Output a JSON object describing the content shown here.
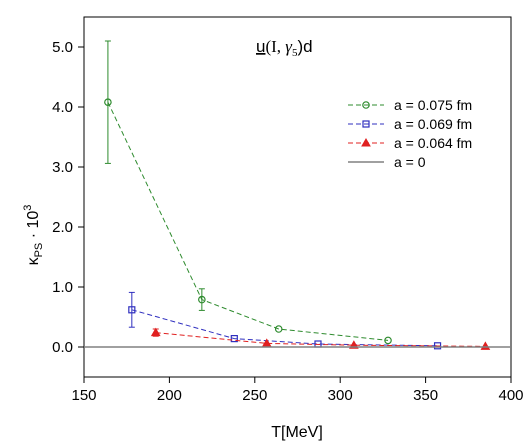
{
  "chart_data": {
    "type": "line",
    "title": "",
    "annotation": {
      "parts": [
        "u",
        "(I, ",
        "γ",
        "5",
        ")d"
      ]
    },
    "xlabel": "T[MeV]",
    "ylabel": {
      "base": "κ",
      "sub": "PS",
      "rest": " · 10",
      "sup": "3"
    },
    "xlim": [
      150,
      400
    ],
    "ylim": [
      -0.5,
      5.5
    ],
    "x_ticks": [
      150,
      200,
      250,
      300,
      350,
      400
    ],
    "x_tick_labels": [
      "150",
      "200",
      "250",
      "300",
      "350",
      "400"
    ],
    "y_ticks": [
      0,
      1,
      2,
      3,
      4,
      5
    ],
    "y_tick_labels": [
      "0.0",
      "1.0",
      "2.0",
      "3.0",
      "4.0",
      "5.0"
    ],
    "grid": false,
    "legend_position": "top-right",
    "series": [
      {
        "name": "a = 0.075 fm",
        "color": "#2e8b2e",
        "marker": "circle",
        "dash": true,
        "x": [
          164,
          219,
          264,
          328
        ],
        "y": [
          4.08,
          0.79,
          0.3,
          0.11
        ],
        "err": [
          1.02,
          0.18,
          0.05,
          0.03
        ]
      },
      {
        "name": "a = 0.069 fm",
        "color": "#2f2fbf",
        "marker": "square",
        "dash": true,
        "x": [
          178,
          238,
          287,
          357
        ],
        "y": [
          0.62,
          0.14,
          0.05,
          0.02
        ],
        "err": [
          0.29,
          0.03,
          0.01,
          0.01
        ]
      },
      {
        "name": "a = 0.064 fm",
        "color": "#e02020",
        "marker": "triangle",
        "dash": true,
        "x": [
          192,
          257,
          308,
          385
        ],
        "y": [
          0.24,
          0.06,
          0.03,
          0.01
        ],
        "err": [
          0.06,
          0.01,
          0.01,
          0.005
        ]
      },
      {
        "name": "a = 0",
        "color": "#808080",
        "marker": "none",
        "dash": false,
        "x": [
          150,
          400
        ],
        "y": [
          0,
          0
        ],
        "err": [
          0,
          0
        ]
      }
    ]
  }
}
